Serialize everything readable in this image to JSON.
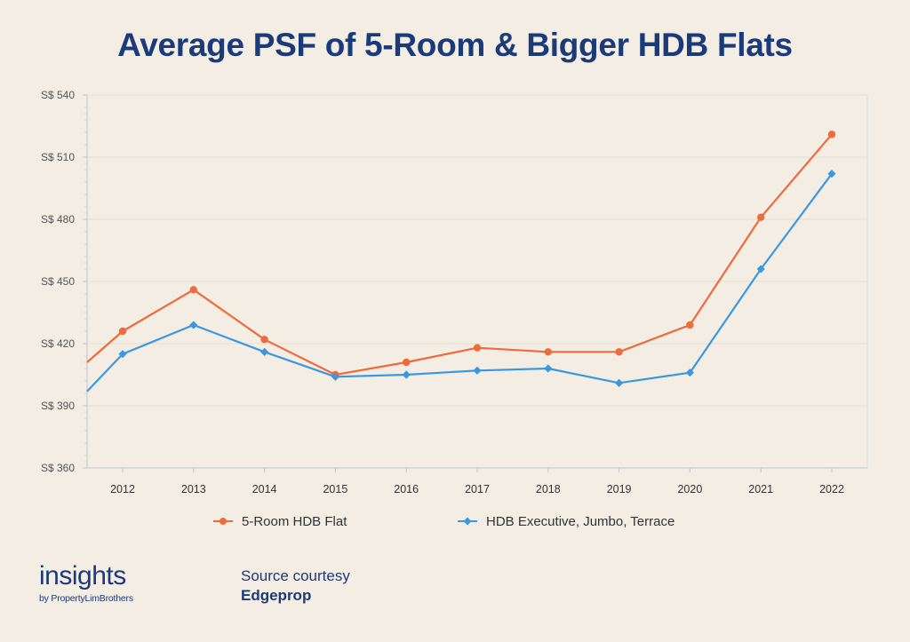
{
  "title": "Average PSF of 5-Room & Bigger HDB Flats",
  "chart_data": {
    "type": "line",
    "x": [
      "2012",
      "2013",
      "2014",
      "2015",
      "2016",
      "2017",
      "2018",
      "2019",
      "2020",
      "2021",
      "2022"
    ],
    "ylim": [
      360,
      540
    ],
    "yticks": [
      360,
      390,
      420,
      450,
      480,
      510,
      540
    ],
    "ytick_labels": [
      "S$ 360",
      "S$ 390",
      "S$ 420",
      "S$ 450",
      "S$ 480",
      "S$ 510",
      "S$ 540"
    ],
    "grid": true,
    "legend": "bottom",
    "series": [
      {
        "name": "5-Room HDB Flat",
        "color": "#ef6a3c",
        "marker": "circle",
        "values": [
          426,
          446,
          422,
          405,
          411,
          418,
          416,
          416,
          429,
          481,
          521
        ],
        "lead_in": 411
      },
      {
        "name": "HDB Executive, Jumbo, Terrace",
        "color": "#3b98e0",
        "marker": "diamond",
        "values": [
          415,
          429,
          416,
          404,
          405,
          407,
          408,
          401,
          406,
          456,
          502
        ],
        "lead_in": 397
      }
    ]
  },
  "branding": {
    "logo_word": "insights",
    "logo_by": "by PropertyLimBrothers"
  },
  "source": {
    "line1": "Source courtesy",
    "line2": "Edgeprop"
  }
}
